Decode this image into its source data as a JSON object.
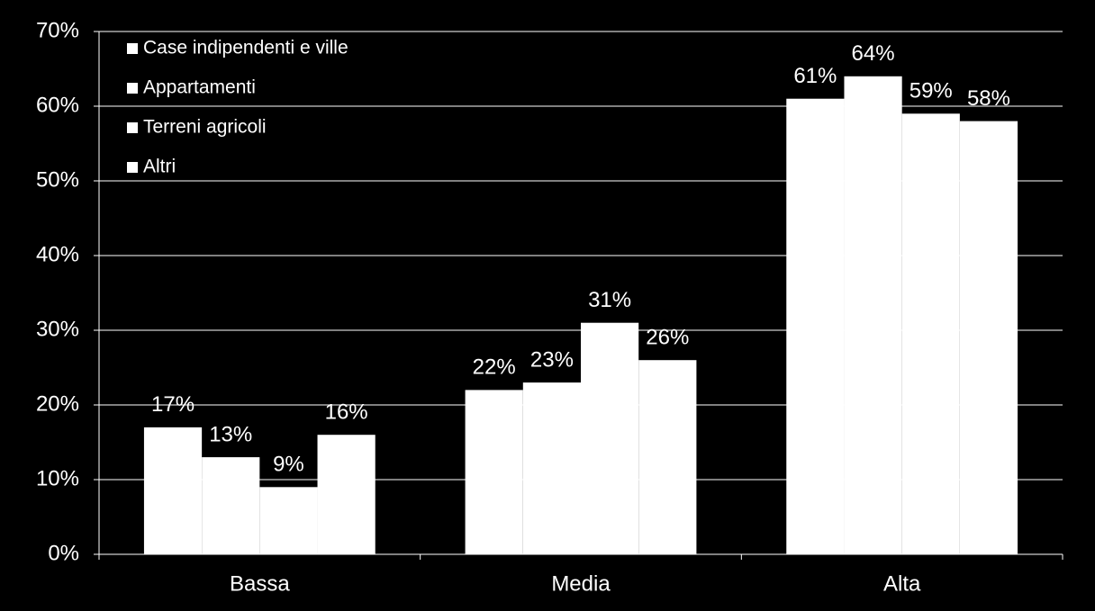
{
  "chart_data": {
    "type": "bar",
    "categories": [
      "Bassa",
      "Media",
      "Alta"
    ],
    "series": [
      {
        "name": "Case indipendenti e ville",
        "color": "#ffffff",
        "values": [
          17,
          22,
          61
        ],
        "value_labels": [
          "17%",
          "22%",
          "61%"
        ]
      },
      {
        "name": "Appartamenti",
        "color": "#ffffff",
        "values": [
          13,
          23,
          64
        ],
        "value_labels": [
          "13%",
          "23%",
          "64%"
        ]
      },
      {
        "name": "Terreni agricoli",
        "color": "#ffffff",
        "values": [
          9,
          31,
          59
        ],
        "value_labels": [
          "9%",
          "31%",
          "59%"
        ]
      },
      {
        "name": "Altri",
        "color": "#ffffff",
        "values": [
          16,
          26,
          58
        ],
        "value_labels": [
          "16%",
          "26%",
          "58%"
        ]
      }
    ],
    "ylim": [
      0,
      70
    ],
    "yticks": [
      {
        "value": 0,
        "label": "0%"
      },
      {
        "value": 10,
        "label": "10%"
      },
      {
        "value": 20,
        "label": "20%"
      },
      {
        "value": 30,
        "label": "30%"
      },
      {
        "value": 40,
        "label": "40%"
      },
      {
        "value": 50,
        "label": "50%"
      },
      {
        "value": 60,
        "label": "60%"
      },
      {
        "value": 70,
        "label": "70%"
      }
    ],
    "grid": true,
    "legend": "top-left"
  }
}
